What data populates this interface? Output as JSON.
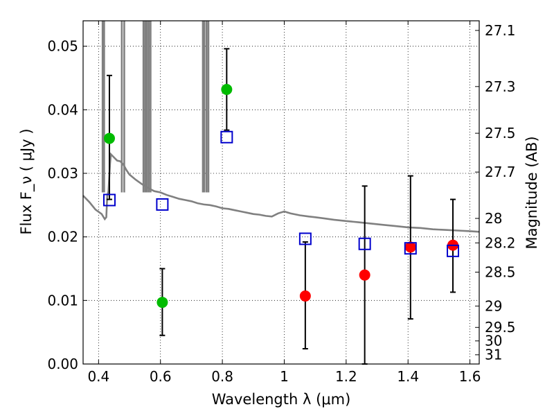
{
  "chart_data": {
    "type": "scatter",
    "xlabel": "Wavelength  λ (μm)",
    "ylabel": "Flux  F_ν  ( μJy )",
    "y2label": "Magnitude (AB)",
    "xlim": [
      0.35,
      1.63
    ],
    "ylim": [
      0.0,
      0.054
    ],
    "grid": true,
    "xticks": [
      0.4,
      0.6,
      0.8,
      1.0,
      1.2,
      1.4,
      1.6
    ],
    "xtick_labels": [
      "0.4",
      "0.6",
      "0.8",
      "1",
      "1.2",
      "1.4",
      "1.6"
    ],
    "yticks": [
      0.0,
      0.01,
      0.02,
      0.03,
      0.04,
      0.05
    ],
    "ytick_labels": [
      "0.00",
      "0.01",
      "0.02",
      "0.03",
      "0.04",
      "0.05"
    ],
    "right_axis_ticks": [
      {
        "label": "27.1",
        "value": 27.1
      },
      {
        "label": "27.3",
        "value": 27.3
      },
      {
        "label": "27.5",
        "value": 27.5
      },
      {
        "label": "27.7",
        "value": 27.7
      },
      {
        "label": "28",
        "value": 28.0
      },
      {
        "label": "28.2",
        "value": 28.2
      },
      {
        "label": "28.5",
        "value": 28.5
      },
      {
        "label": "29",
        "value": 29.0
      },
      {
        "label": "29.5",
        "value": 29.5
      },
      {
        "label": "30",
        "value": 30.0
      },
      {
        "label": "31",
        "value": 31.0
      }
    ],
    "series": [
      {
        "marker": "circle",
        "color": "#00bb00",
        "points": [
          {
            "x": 0.435,
            "y": 0.0355,
            "err_low": 0.0259,
            "err_high": 0.0454
          },
          {
            "x": 0.606,
            "y": 0.0097,
            "err_low": 0.0045,
            "err_high": 0.015
          },
          {
            "x": 0.814,
            "y": 0.0432,
            "err_low": 0.0368,
            "err_high": 0.0496
          }
        ]
      },
      {
        "marker": "circle",
        "color": "#ff0000",
        "points": [
          {
            "x": 1.068,
            "y": 0.0107,
            "err_low": 0.0024,
            "err_high": 0.0192
          },
          {
            "x": 1.26,
            "y": 0.014,
            "err_low": 0.0,
            "err_high": 0.028
          },
          {
            "x": 1.408,
            "y": 0.0184,
            "err_low": 0.0071,
            "err_high": 0.0296
          },
          {
            "x": 1.545,
            "y": 0.0187,
            "err_low": 0.0113,
            "err_high": 0.0259
          }
        ]
      },
      {
        "marker": "open-square",
        "color": "#0000cc",
        "points": [
          {
            "x": 0.435,
            "y": 0.0258
          },
          {
            "x": 0.606,
            "y": 0.0251
          },
          {
            "x": 0.814,
            "y": 0.0357
          },
          {
            "x": 1.068,
            "y": 0.0197
          },
          {
            "x": 1.26,
            "y": 0.0189
          },
          {
            "x": 1.408,
            "y": 0.0182
          },
          {
            "x": 1.545,
            "y": 0.0178
          }
        ]
      },
      {
        "marker": "line",
        "color": "#808080",
        "points": [
          [
            0.35,
            0.0265
          ],
          [
            0.37,
            0.0255
          ],
          [
            0.39,
            0.0243
          ],
          [
            0.41,
            0.0236
          ],
          [
            0.42,
            0.0228
          ],
          [
            0.425,
            0.0231
          ],
          [
            0.428,
            0.0265
          ],
          [
            0.432,
            0.0272
          ],
          [
            0.437,
            0.0315
          ],
          [
            0.44,
            0.033
          ],
          [
            0.45,
            0.0325
          ],
          [
            0.46,
            0.032
          ],
          [
            0.47,
            0.0319
          ],
          [
            0.48,
            0.0314
          ],
          [
            0.49,
            0.0305
          ],
          [
            0.5,
            0.0298
          ],
          [
            0.52,
            0.029
          ],
          [
            0.54,
            0.0283
          ],
          [
            0.56,
            0.0277
          ],
          [
            0.58,
            0.0272
          ],
          [
            0.6,
            0.027
          ],
          [
            0.62,
            0.0266
          ],
          [
            0.64,
            0.0263
          ],
          [
            0.66,
            0.026
          ],
          [
            0.68,
            0.0258
          ],
          [
            0.7,
            0.0256
          ],
          [
            0.72,
            0.0253
          ],
          [
            0.74,
            0.0251
          ],
          [
            0.76,
            0.025
          ],
          [
            0.78,
            0.0248
          ],
          [
            0.8,
            0.0245
          ],
          [
            0.82,
            0.0244
          ],
          [
            0.84,
            0.0242
          ],
          [
            0.86,
            0.024
          ],
          [
            0.88,
            0.0238
          ],
          [
            0.9,
            0.0236
          ],
          [
            0.92,
            0.0235
          ],
          [
            0.94,
            0.0233
          ],
          [
            0.96,
            0.0232
          ],
          [
            0.98,
            0.0237
          ],
          [
            1.0,
            0.024
          ],
          [
            1.02,
            0.0237
          ],
          [
            1.05,
            0.0234
          ],
          [
            1.08,
            0.0232
          ],
          [
            1.1,
            0.0231
          ],
          [
            1.13,
            0.0229
          ],
          [
            1.16,
            0.0227
          ],
          [
            1.2,
            0.0225
          ],
          [
            1.24,
            0.0223
          ],
          [
            1.28,
            0.0221
          ],
          [
            1.32,
            0.0219
          ],
          [
            1.36,
            0.0217
          ],
          [
            1.4,
            0.0215
          ],
          [
            1.44,
            0.0214
          ],
          [
            1.48,
            0.0212
          ],
          [
            1.52,
            0.0211
          ],
          [
            1.56,
            0.021
          ],
          [
            1.6,
            0.0209
          ],
          [
            1.63,
            0.0208
          ]
        ]
      },
      {
        "marker": "spike",
        "color": "#808080",
        "x": [
          0.413,
          0.418,
          0.475,
          0.483,
          0.545,
          0.551,
          0.556,
          0.562,
          0.568,
          0.737,
          0.742,
          0.749,
          0.755
        ]
      }
    ]
  }
}
